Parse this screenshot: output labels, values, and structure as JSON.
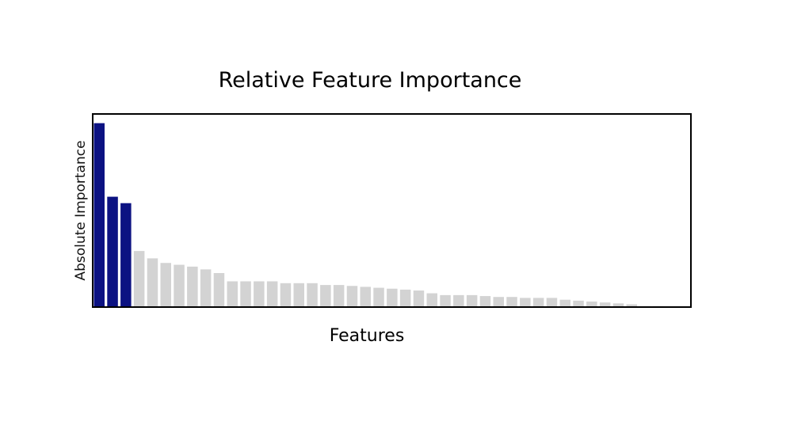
{
  "chart_data": {
    "type": "bar",
    "title": "Relative Feature Importance",
    "xlabel": "Features",
    "ylabel": "Absolute Importance",
    "x_ticks": "none",
    "y_ticks": "none",
    "grid": false,
    "legend": "none",
    "ylim": [
      0,
      1.05
    ],
    "highlight_count": 3,
    "colors": {
      "highlight": "#0c1282",
      "default": "#d3d3d3",
      "frame": "#000000"
    },
    "values": [
      1.0,
      0.6,
      0.565,
      0.305,
      0.265,
      0.24,
      0.23,
      0.22,
      0.205,
      0.185,
      0.14,
      0.14,
      0.14,
      0.14,
      0.13,
      0.13,
      0.13,
      0.12,
      0.12,
      0.115,
      0.11,
      0.105,
      0.1,
      0.095,
      0.09,
      0.075,
      0.065,
      0.065,
      0.065,
      0.06,
      0.055,
      0.055,
      0.05,
      0.05,
      0.05,
      0.04,
      0.035,
      0.03,
      0.025,
      0.02,
      0.015,
      0.005,
      0.005,
      0.0,
      0.0
    ]
  }
}
